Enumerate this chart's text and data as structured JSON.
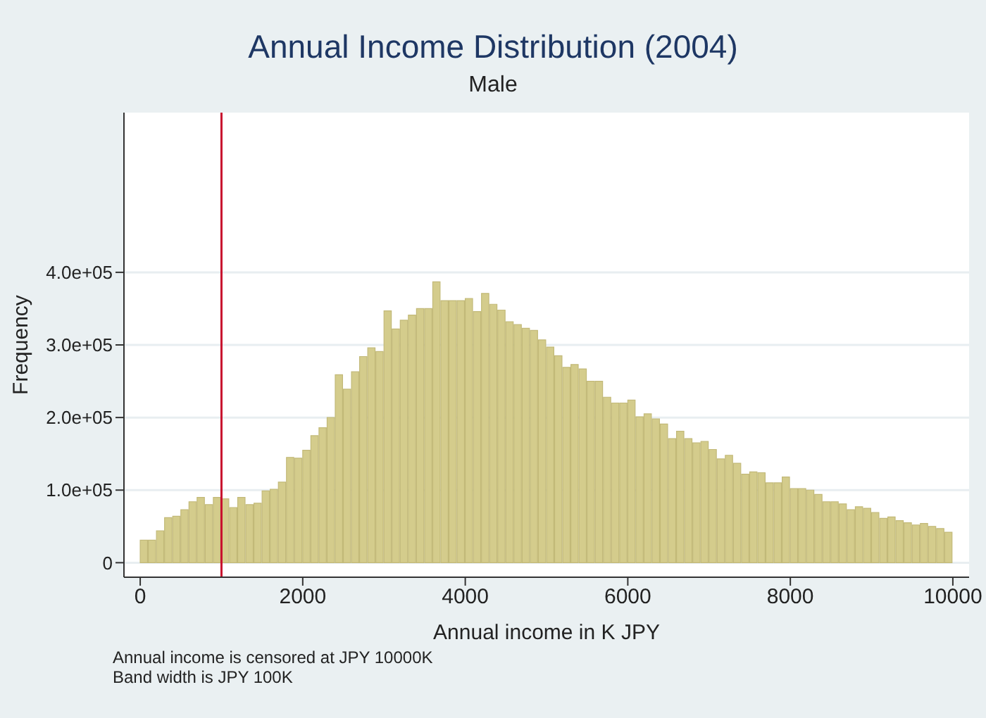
{
  "chart_data": {
    "type": "histogram",
    "title": "Annual Income Distribution (2004)",
    "subtitle": "Male",
    "xlabel": "Annual income in K JPY",
    "ylabel": "Frequency",
    "annotations": [
      "Annual income is censored at JPY 10000K",
      "Band width is JPY 100K"
    ],
    "bins": [
      0,
      100,
      200,
      300,
      400,
      500,
      600,
      700,
      800,
      900,
      1000,
      1100,
      1200,
      1300,
      1400,
      1500,
      1600,
      1700,
      1800,
      1900,
      2000,
      2100,
      2200,
      2300,
      2400,
      2500,
      2600,
      2700,
      2800,
      2900,
      3000,
      3100,
      3200,
      3300,
      3400,
      3500,
      3600,
      3700,
      3800,
      3900,
      4000,
      4100,
      4200,
      4300,
      4400,
      4500,
      4600,
      4700,
      4800,
      4900,
      5000,
      5100,
      5200,
      5300,
      5400,
      5500,
      5600,
      5700,
      5800,
      5900,
      6000,
      6100,
      6200,
      6300,
      6400,
      6500,
      6600,
      6700,
      6800,
      6900,
      7000,
      7100,
      7200,
      7300,
      7400,
      7500,
      7600,
      7700,
      7800,
      7900,
      8000,
      8100,
      8200,
      8300,
      8400,
      8500,
      8600,
      8700,
      8800,
      8900,
      9000,
      9100,
      9200,
      9300,
      9400,
      9500,
      9600,
      9700,
      9800,
      9900,
      10000
    ],
    "values": [
      31000,
      31000,
      44000,
      62000,
      64000,
      73000,
      84000,
      90000,
      80000,
      90000,
      88000,
      76000,
      90000,
      80000,
      82000,
      99000,
      101000,
      111000,
      145000,
      144000,
      155000,
      175000,
      186000,
      200000,
      259000,
      239000,
      263000,
      284000,
      296000,
      291000,
      347000,
      322000,
      334000,
      341000,
      350000,
      350000,
      387000,
      361000,
      361000,
      361000,
      364000,
      346000,
      371000,
      356000,
      348000,
      332000,
      328000,
      323000,
      320000,
      307000,
      297000,
      285000,
      269000,
      273000,
      267000,
      250000,
      250000,
      228000,
      220000,
      220000,
      224000,
      201000,
      205000,
      198000,
      191000,
      171000,
      181000,
      171000,
      165000,
      167000,
      156000,
      143000,
      148000,
      137000,
      122000,
      125000,
      124000,
      110000,
      110000,
      118000,
      102000,
      102000,
      100000,
      94000,
      84000,
      84000,
      81000,
      73000,
      77000,
      75000,
      69000,
      61000,
      63000,
      58000,
      55000,
      52000,
      54000,
      50000,
      47000,
      42000
    ],
    "color": "#d4cc8c",
    "xlim": [
      -200,
      10200
    ],
    "xticks": [
      0,
      2000,
      4000,
      6000,
      8000,
      10000
    ],
    "ylim": [
      -20000,
      620000
    ],
    "yticks": [
      0,
      {
        "value": 100000,
        "label": "1.0e+05"
      },
      {
        "value": 200000,
        "label": "2.0e+05"
      },
      {
        "value": 300000,
        "label": "3.0e+05"
      },
      {
        "value": 400000,
        "label": "4.0e+05"
      }
    ],
    "ref_lines": [
      {
        "axis": "x",
        "value": 1000,
        "color": "#c8102e"
      }
    ],
    "grid": "y"
  }
}
